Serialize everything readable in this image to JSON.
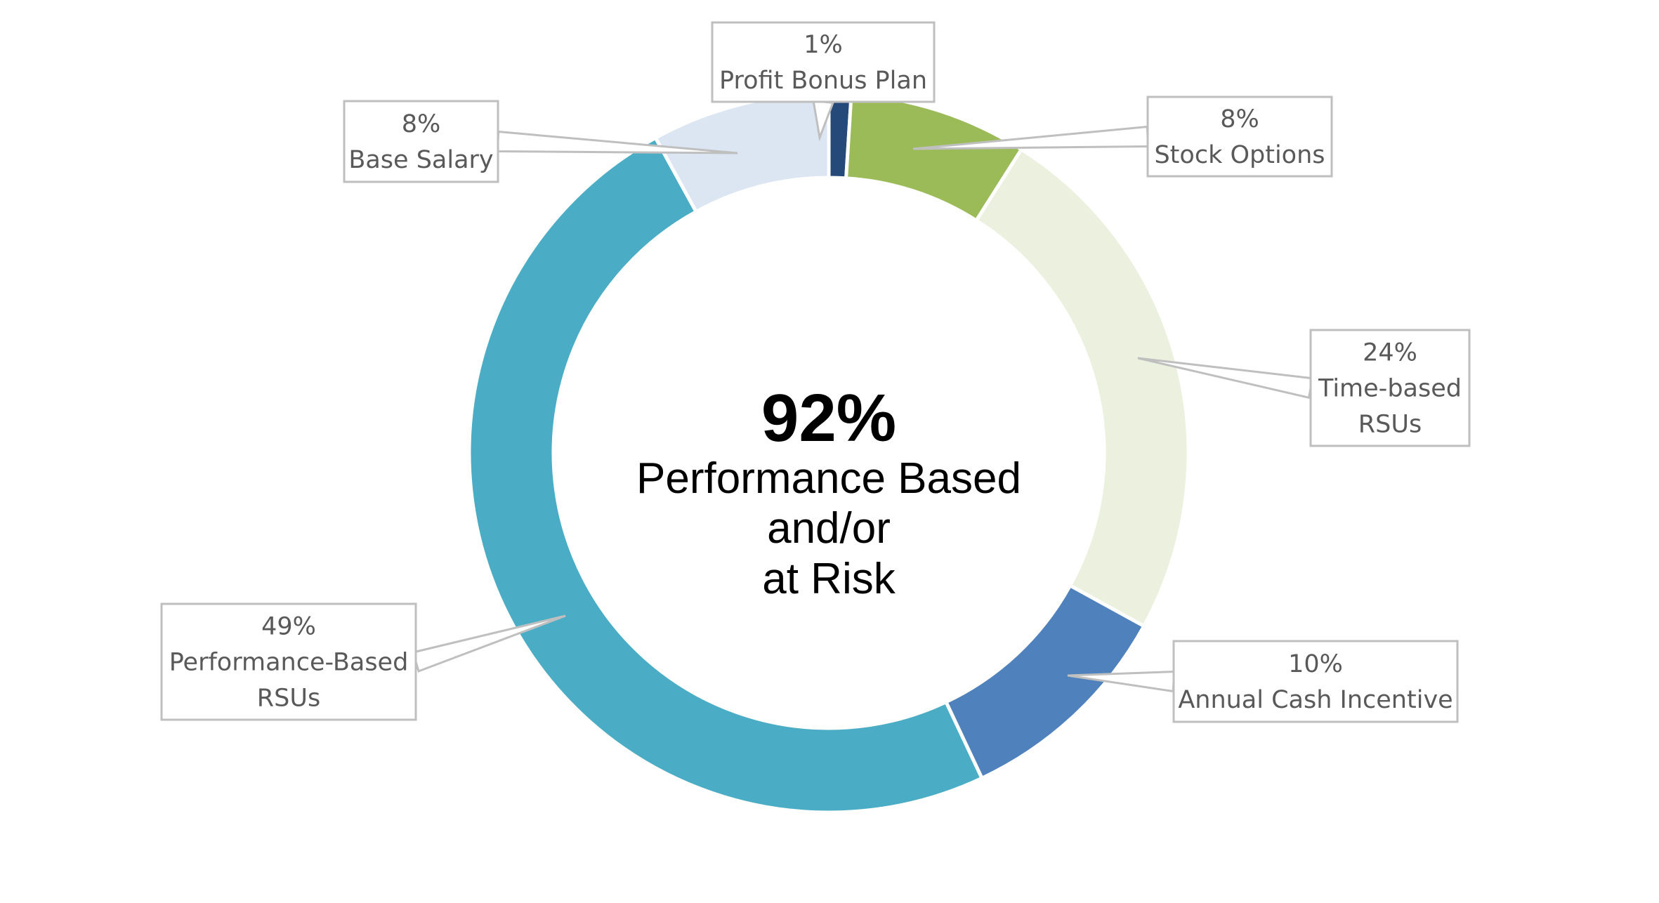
{
  "chart_data": {
    "type": "pie",
    "style": "donut",
    "slices": [
      {
        "name": "Profit Bonus Plan",
        "value": 1,
        "label": "1%",
        "color": "#254a7a"
      },
      {
        "name": "Stock Options",
        "value": 8,
        "label": "8%",
        "color": "#9bbb59"
      },
      {
        "name": "Time-based RSUs",
        "value": 24,
        "label": "24%",
        "color": "#ebf1de"
      },
      {
        "name": "Annual Cash Incentive",
        "value": 10,
        "label": "10%",
        "color": "#4f81bd"
      },
      {
        "name": "Performance-Based RSUs",
        "value": 49,
        "label": "49%",
        "color": "#4bacc6"
      },
      {
        "name": "Base Salary",
        "value": 8,
        "label": "8%",
        "color": "#dce6f2"
      }
    ],
    "center": {
      "value": "92%",
      "lines": [
        "Performance Based",
        "and/or",
        "at Risk"
      ]
    }
  }
}
